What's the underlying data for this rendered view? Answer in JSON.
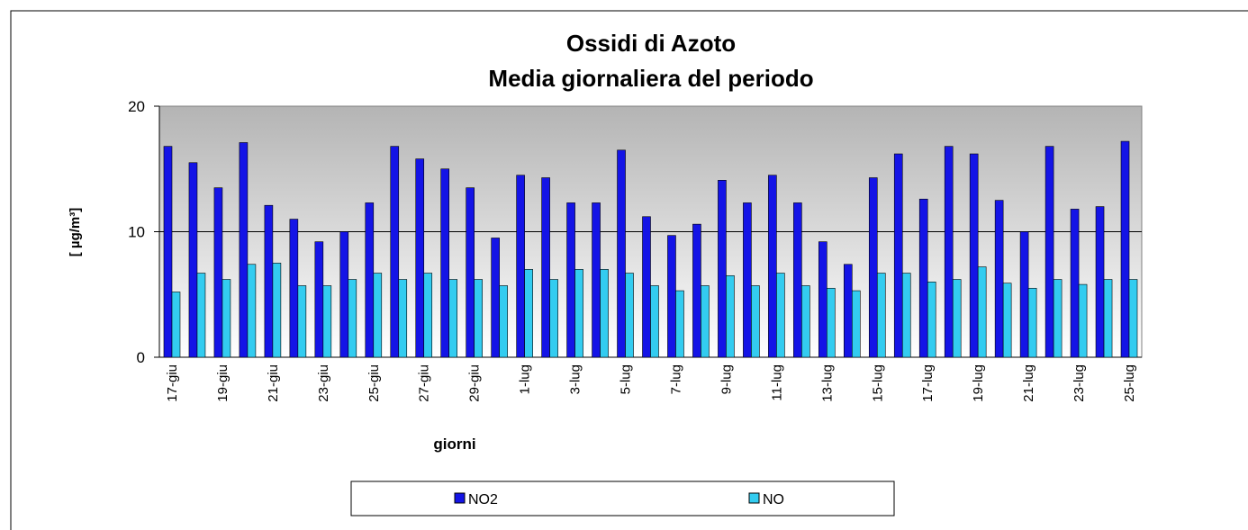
{
  "chart_data": {
    "type": "bar",
    "title": "Ossidi di Azoto",
    "subtitle": "Media giornaliera del periodo",
    "x_label": "giorni",
    "y_label": "[ µg/m³]",
    "categories": [
      "17-giu",
      null,
      "19-giu",
      null,
      "21-giu",
      null,
      "23-giu",
      null,
      "25-giu",
      null,
      "27-giu",
      null,
      "29-giu",
      null,
      "1-lug",
      null,
      "3-lug",
      null,
      "5-lug",
      null,
      "7-lug",
      null,
      "9-lug",
      null,
      "11-lug",
      null,
      "13-lug",
      null,
      "15-lug",
      null,
      "17-lug",
      null,
      "19-lug",
      null,
      "21-lug",
      null,
      "23-lug",
      null,
      "25-lug"
    ],
    "series": [
      {
        "name": "NO2",
        "color": "#1414e6",
        "values": [
          16.8,
          15.5,
          13.5,
          17.1,
          12.1,
          11.0,
          9.2,
          10.0,
          12.3,
          16.8,
          15.8,
          15.0,
          13.5,
          9.5,
          14.5,
          14.3,
          12.3,
          12.3,
          16.5,
          11.2,
          9.7,
          10.6,
          14.1,
          12.3,
          14.5,
          12.3,
          9.2,
          7.4,
          14.3,
          16.2,
          12.6,
          16.8,
          16.2,
          12.5,
          10.0,
          16.8,
          11.8,
          12.0,
          17.2
        ]
      },
      {
        "name": "NO",
        "color": "#33ccf0",
        "values": [
          5.2,
          6.7,
          6.2,
          7.4,
          7.5,
          5.7,
          5.7,
          6.2,
          6.7,
          6.2,
          6.7,
          6.2,
          6.2,
          5.7,
          7.0,
          6.2,
          7.0,
          7.0,
          6.7,
          5.7,
          5.3,
          5.7,
          6.5,
          5.7,
          6.7,
          5.7,
          5.5,
          5.3,
          6.7,
          6.7,
          6.0,
          6.2,
          7.2,
          5.9,
          5.5,
          6.2,
          5.8,
          6.2,
          6.2
        ]
      }
    ],
    "ylim": [
      0,
      20
    ],
    "yticks": [
      0,
      10,
      20
    ],
    "grid": true,
    "legend": "bottom"
  }
}
